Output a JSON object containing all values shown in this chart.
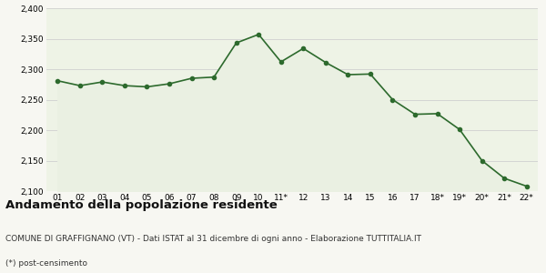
{
  "x_labels": [
    "01",
    "02",
    "03",
    "04",
    "05",
    "06",
    "07",
    "08",
    "09",
    "10",
    "11*",
    "12",
    "13",
    "14",
    "15",
    "16",
    "17",
    "18*",
    "19*",
    "20*",
    "21*",
    "22*"
  ],
  "y_values": [
    2281,
    2273,
    2279,
    2273,
    2271,
    2276,
    2285,
    2287,
    2343,
    2357,
    2312,
    2334,
    2311,
    2291,
    2292,
    2250,
    2226,
    2227,
    2201,
    2150,
    2121,
    2108
  ],
  "line_color": "#2d6a2d",
  "fill_color": "#eaf0e2",
  "marker": "o",
  "marker_size": 3.0,
  "line_width": 1.2,
  "ylim": [
    2100,
    2400
  ],
  "yticks": [
    2100,
    2150,
    2200,
    2250,
    2300,
    2350,
    2400
  ],
  "grid_color": "#d0d0d0",
  "bg_color": "#f7f7f2",
  "plot_bg_color": "#eef3e6",
  "title": "Andamento della popolazione residente",
  "subtitle": "COMUNE DI GRAFFIGNANO (VT) - Dati ISTAT al 31 dicembre di ogni anno - Elaborazione TUTTITALIA.IT",
  "footnote": "(*) post-censimento",
  "title_fontsize": 9.5,
  "subtitle_fontsize": 6.5,
  "footnote_fontsize": 6.5,
  "tick_fontsize": 6.5
}
